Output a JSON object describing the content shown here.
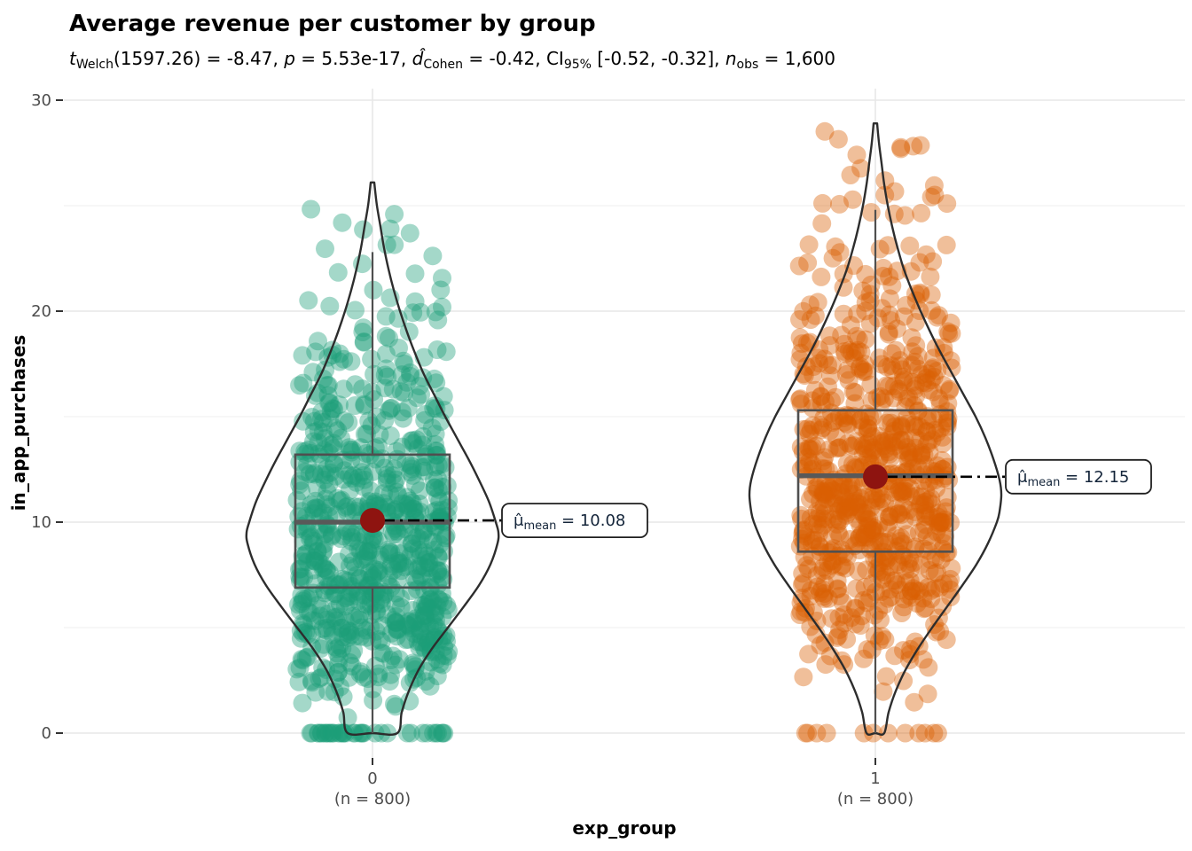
{
  "title": "Average revenue per customer by group",
  "subtitle": {
    "plain": "t_Welch(1597.26) = -8.47, p = 5.53e-17, d_Cohen = -0.42, CI_95% [-0.52, -0.32], n_obs = 1,600",
    "parts": [
      {
        "t": "t",
        "c": "it"
      },
      {
        "t": "Welch",
        "c": "sub"
      },
      {
        "t": "(1597.26) = -8.47, ",
        "c": "n"
      },
      {
        "t": "p",
        "c": "it"
      },
      {
        "t": " = 5.53e-17, ",
        "c": "n"
      },
      {
        "t": "d̂",
        "c": "it"
      },
      {
        "t": "Cohen",
        "c": "sub"
      },
      {
        "t": " = -0.42, CI",
        "c": "n"
      },
      {
        "t": "95%",
        "c": "sub"
      },
      {
        "t": " [-0.52, -0.32], ",
        "c": "n"
      },
      {
        "t": "n",
        "c": "it"
      },
      {
        "t": "obs",
        "c": "sub"
      },
      {
        "t": " = 1,600",
        "c": "n"
      }
    ]
  },
  "axes": {
    "y": {
      "label": "in_app_purchases",
      "ticks": [
        0,
        10,
        20,
        30
      ],
      "minor_ticks": [
        5,
        15,
        25
      ],
      "range": [
        0,
        30
      ]
    },
    "x": {
      "label": "exp_group",
      "categories": [
        {
          "label": "0",
          "n_label": "(n = 800)"
        },
        {
          "label": "1",
          "n_label": "(n = 800)"
        }
      ]
    }
  },
  "chart_data": {
    "type": "violin",
    "title": "Average revenue per customer by group",
    "xlabel": "exp_group",
    "ylabel": "in_app_purchases",
    "ylim": [
      0,
      30
    ],
    "grid": "major+minor",
    "legend": "none",
    "groups": [
      {
        "name": "0",
        "n_obs": 800,
        "color": "#1B9E77",
        "mean": 10.08,
        "median": 10.0,
        "q1": 6.9,
        "q3": 13.2,
        "whisker_low": 0,
        "whisker_high": 22.8,
        "max_value": 26.1,
        "mean_label": {
          "symbol": "μ̂",
          "sub": "mean",
          "value": " = 10.08"
        },
        "violin_profile": [
          [
            26.1,
            2
          ],
          [
            25,
            5
          ],
          [
            24,
            9
          ],
          [
            23,
            13
          ],
          [
            22,
            18
          ],
          [
            21,
            24
          ],
          [
            20,
            31
          ],
          [
            19,
            39
          ],
          [
            18,
            48
          ],
          [
            17,
            58
          ],
          [
            16,
            70
          ],
          [
            15,
            82
          ],
          [
            14,
            95
          ],
          [
            13,
            108
          ],
          [
            12,
            120
          ],
          [
            11,
            131
          ],
          [
            10,
            139
          ],
          [
            9.5,
            142
          ],
          [
            9,
            141
          ],
          [
            8,
            133
          ],
          [
            7,
            120
          ],
          [
            6,
            103
          ],
          [
            5,
            85
          ],
          [
            4,
            67
          ],
          [
            3,
            52
          ],
          [
            2,
            41
          ],
          [
            1,
            33
          ],
          [
            0,
            28
          ]
        ],
        "points_spec": {
          "count": 800,
          "zeros": 38,
          "gamma_shape": 4,
          "gamma_scale": 2.55,
          "seed": 20,
          "jitter_halfwidth": 86
        }
      },
      {
        "name": "1",
        "n_obs": 800,
        "color": "#D95F02",
        "mean": 12.15,
        "median": 12.2,
        "q1": 8.6,
        "q3": 15.3,
        "whisker_low": 0,
        "whisker_high": 24.8,
        "max_value": 28.9,
        "mean_label": {
          "symbol": "μ̂",
          "sub": "mean",
          "value": " = 12.15"
        },
        "violin_profile": [
          [
            28.9,
            2
          ],
          [
            28,
            4
          ],
          [
            27,
            7
          ],
          [
            26,
            10
          ],
          [
            25,
            14
          ],
          [
            24,
            19
          ],
          [
            23,
            25
          ],
          [
            22,
            32
          ],
          [
            21,
            41
          ],
          [
            20,
            51
          ],
          [
            19,
            62
          ],
          [
            18,
            74
          ],
          [
            17,
            87
          ],
          [
            16,
            100
          ],
          [
            15,
            113
          ],
          [
            14,
            124
          ],
          [
            13,
            133
          ],
          [
            12,
            140
          ],
          [
            11.3,
            142
          ],
          [
            10.5,
            140
          ],
          [
            10,
            137
          ],
          [
            9,
            127
          ],
          [
            8,
            114
          ],
          [
            7,
            98
          ],
          [
            6,
            81
          ],
          [
            5,
            64
          ],
          [
            4,
            48
          ],
          [
            3,
            34
          ],
          [
            2,
            23
          ],
          [
            1,
            15
          ],
          [
            0,
            10
          ]
        ],
        "points_spec": {
          "count": 800,
          "zeros": 12,
          "gamma_shape": 5,
          "gamma_scale": 2.5,
          "seed": 77,
          "jitter_halfwidth": 86
        }
      }
    ]
  },
  "style": {
    "mean_dot_color": "#8E1410",
    "point_opacity": 0.4,
    "violin_stroke": "#2d2d2d",
    "box_stroke": "#4f4f4f",
    "median_stroke": "#595959",
    "grid_major": "#e7e7e7",
    "grid_minor": "#f2f2f2",
    "tick_color": "#333333",
    "tick_label_color": "#4d4d4d",
    "label_box_stroke": "#1f1f1f",
    "label_text_color": "#14253a"
  }
}
